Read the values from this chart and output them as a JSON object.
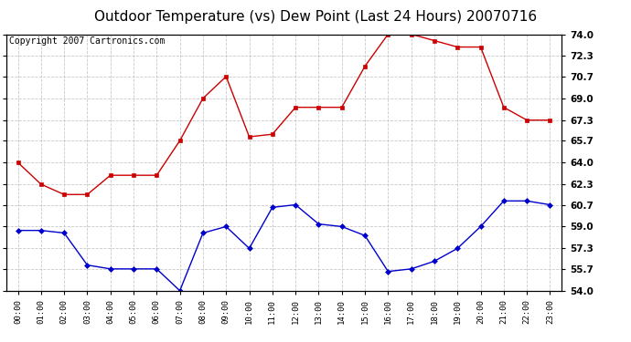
{
  "title": "Outdoor Temperature (vs) Dew Point (Last 24 Hours) 20070716",
  "copyright_text": "Copyright 2007 Cartronics.com",
  "hours": [
    "00:00",
    "01:00",
    "02:00",
    "03:00",
    "04:00",
    "05:00",
    "06:00",
    "07:00",
    "08:00",
    "09:00",
    "10:00",
    "11:00",
    "12:00",
    "13:00",
    "14:00",
    "15:00",
    "16:00",
    "17:00",
    "18:00",
    "19:00",
    "20:00",
    "21:00",
    "22:00",
    "23:00"
  ],
  "temp_red": [
    64.0,
    62.3,
    61.5,
    61.5,
    63.0,
    63.0,
    63.0,
    65.7,
    69.0,
    70.7,
    66.0,
    66.2,
    68.3,
    68.3,
    68.3,
    71.5,
    74.0,
    74.0,
    73.5,
    73.0,
    73.0,
    68.3,
    67.3,
    67.3
  ],
  "temp_blue": [
    58.7,
    58.7,
    58.5,
    56.0,
    55.7,
    55.7,
    55.7,
    54.0,
    58.5,
    59.0,
    57.3,
    60.5,
    60.7,
    59.2,
    59.0,
    58.3,
    55.5,
    55.7,
    56.3,
    57.3,
    59.0,
    61.0,
    61.0,
    60.7
  ],
  "ylim": [
    54.0,
    74.0
  ],
  "yticks": [
    54.0,
    55.7,
    57.3,
    59.0,
    60.7,
    62.3,
    64.0,
    65.7,
    67.3,
    69.0,
    70.7,
    72.3,
    74.0
  ],
  "red_color": "#cc0000",
  "blue_color": "#0000cc",
  "bg_color": "#ffffff",
  "grid_color": "#bbbbbb",
  "title_fontsize": 11,
  "copyright_fontsize": 7
}
